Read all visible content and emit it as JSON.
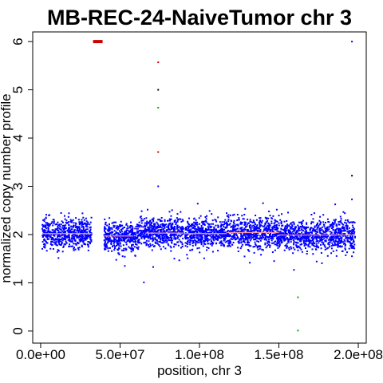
{
  "chart_data": {
    "type": "scatter",
    "title": "MB-REC-24-NaiveTumor chr 3",
    "xlabel": "position, chr 3",
    "ylabel": "normalized copy number profile",
    "xlim": [
      -5000000,
      205000000
    ],
    "ylim": [
      -0.25,
      6.2
    ],
    "x_ticks": [
      0,
      50000000,
      100000000,
      150000000,
      200000000
    ],
    "x_tick_labels": [
      "0.0e+00",
      "5.0e+07",
      "1.0e+08",
      "1.5e+08",
      "2.0e+08"
    ],
    "y_ticks": [
      0,
      1,
      2,
      3,
      4,
      5,
      6
    ],
    "y_tick_labels": [
      "0",
      "1",
      "2",
      "3",
      "4",
      "5",
      "6"
    ],
    "colors": {
      "normal": "#0000ff",
      "gain": "#cc0000",
      "loss": "#00aa00",
      "segment": "#ff9999",
      "outlier": "#000000"
    },
    "bulk_bands": [
      {
        "x_start": 1000000,
        "x_end": 32000000,
        "center": 2.02,
        "spread": 0.28
      },
      {
        "x_start": 40000000,
        "x_end": 62000000,
        "center": 1.97,
        "spread": 0.3
      },
      {
        "x_start": 62000000,
        "x_end": 90000000,
        "center": 2.05,
        "spread": 0.27
      },
      {
        "x_start": 91000000,
        "x_end": 117000000,
        "center": 2.02,
        "spread": 0.27
      },
      {
        "x_start": 117000000,
        "x_end": 150000000,
        "center": 2.04,
        "spread": 0.3
      },
      {
        "x_start": 150000000,
        "x_end": 180000000,
        "center": 1.99,
        "spread": 0.27
      },
      {
        "x_start": 180000000,
        "x_end": 198000000,
        "center": 1.99,
        "spread": 0.3
      }
    ],
    "segments": [
      {
        "x_start": 1000000,
        "x_end": 32000000,
        "y": 2.02
      },
      {
        "x_start": 40000000,
        "x_end": 58000000,
        "y": 1.97
      },
      {
        "x_start": 58000000,
        "x_end": 66000000,
        "y": 2.14
      },
      {
        "x_start": 66000000,
        "x_end": 90000000,
        "y": 2.03
      },
      {
        "x_start": 91000000,
        "x_end": 117000000,
        "y": 2.02
      },
      {
        "x_start": 117000000,
        "x_end": 150000000,
        "y": 2.04
      },
      {
        "x_start": 150000000,
        "x_end": 180000000,
        "y": 1.99
      },
      {
        "x_start": 180000000,
        "x_end": 198000000,
        "y": 1.99
      }
    ],
    "gain_points_region": {
      "x_start": 33000000,
      "x_end": 39000000,
      "y": 6.0
    },
    "points": [
      {
        "x": 74000000,
        "y": 5.57,
        "series": "gain"
      },
      {
        "x": 74000000,
        "y": 3.71,
        "series": "gain"
      },
      {
        "x": 74000000,
        "y": 5.0,
        "series": "outlier"
      },
      {
        "x": 74000000,
        "y": 4.63,
        "series": "loss"
      },
      {
        "x": 74000000,
        "y": 3.0,
        "series": "normal"
      },
      {
        "x": 65000000,
        "y": 1.01,
        "series": "normal"
      },
      {
        "x": 162000000,
        "y": 0.7,
        "series": "loss"
      },
      {
        "x": 162000000,
        "y": 0.01,
        "series": "loss"
      },
      {
        "x": 196000000,
        "y": 6.0,
        "series": "normal"
      },
      {
        "x": 196000000,
        "y": 3.22,
        "series": "outlier"
      },
      {
        "x": 196000000,
        "y": 2.73,
        "series": "normal"
      },
      {
        "x": 196000000,
        "y": 1.55,
        "series": "normal"
      },
      {
        "x": 53000000,
        "y": 1.35,
        "series": "normal"
      },
      {
        "x": 140000000,
        "y": 2.65,
        "series": "normal"
      },
      {
        "x": 147000000,
        "y": 1.45,
        "series": "normal"
      }
    ]
  }
}
